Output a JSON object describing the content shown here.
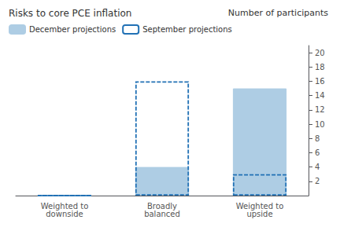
{
  "chart_data": {
    "type": "bar",
    "title": "Number of participants",
    "subtitle": "Risks to core PCE inflation",
    "categories": [
      "Weighted to\ndownside",
      "Broadly\nbalanced",
      "Weighted to\nupside"
    ],
    "series": [
      {
        "name": "December projections",
        "color": "#aecde4",
        "line_style": "solid",
        "values": [
          0,
          4,
          15
        ]
      },
      {
        "name": "September projections",
        "color": "#2171b5",
        "line_style": "dashed",
        "values": [
          0,
          16,
          3
        ]
      }
    ],
    "ylim": [
      0,
      21
    ],
    "yticks": [
      2,
      4,
      6,
      8,
      10,
      12,
      14,
      16,
      18,
      20
    ],
    "grid": false,
    "legend": "top-left"
  }
}
